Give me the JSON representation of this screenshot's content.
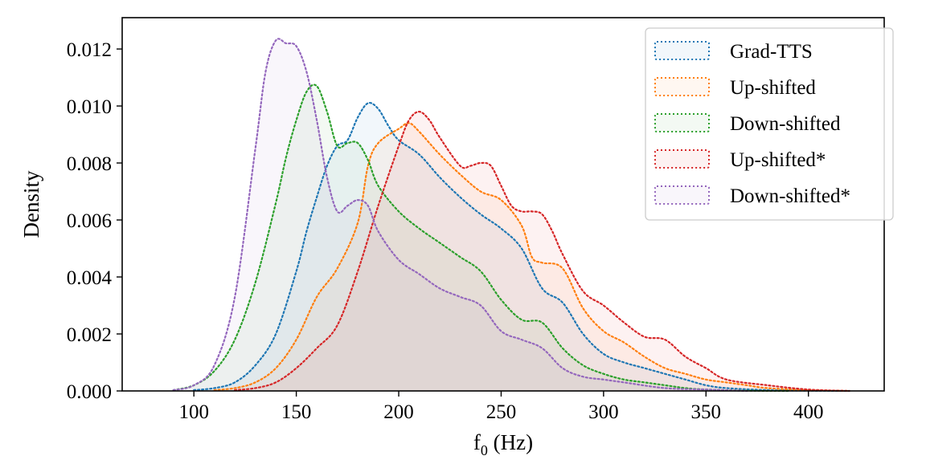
{
  "chart_data": {
    "type": "area",
    "xlabel_main": "f",
    "xlabel_sub": "0",
    "xlabel_rest": " (Hz)",
    "ylabel": "Density",
    "xlim": [
      65,
      437
    ],
    "ylim": [
      0,
      0.0131
    ],
    "x_ticks": [
      100,
      150,
      200,
      250,
      300,
      350,
      400
    ],
    "x_tick_labels": [
      "100",
      "150",
      "200",
      "250",
      "300",
      "350",
      "400"
    ],
    "y_ticks": [
      0,
      0.002,
      0.004,
      0.006,
      0.008,
      0.01,
      0.012
    ],
    "y_tick_labels": [
      "0.000",
      "0.002",
      "0.004",
      "0.006",
      "0.008",
      "0.010",
      "0.012"
    ],
    "grid": false,
    "legend_position": "top-right",
    "line_style": "dotted",
    "fill_alpha": 0.06,
    "series": [
      {
        "name": "Grad-TTS",
        "color": "#1f77b4",
        "x": [
          100,
          110,
          120,
          130,
          140,
          150,
          155,
          160,
          165,
          170,
          175,
          180,
          185,
          190,
          195,
          200,
          210,
          220,
          230,
          240,
          250,
          260,
          270,
          280,
          290,
          300,
          310,
          320,
          330,
          340,
          350,
          360,
          380,
          400,
          420
        ],
        "y": [
          3e-05,
          0.0001,
          0.0003,
          0.0009,
          0.002,
          0.0042,
          0.0056,
          0.0068,
          0.0079,
          0.0086,
          0.0088,
          0.0096,
          0.0101,
          0.0099,
          0.0093,
          0.0088,
          0.0083,
          0.0075,
          0.0068,
          0.0062,
          0.0057,
          0.005,
          0.0036,
          0.0031,
          0.002,
          0.0013,
          0.001,
          0.0008,
          0.0006,
          0.0004,
          0.0002,
          0.0001,
          3e-05,
          1e-05,
          0.0
        ]
      },
      {
        "name": "Up-shifted",
        "color": "#ff7f0e",
        "x": [
          110,
          120,
          130,
          140,
          150,
          160,
          170,
          180,
          185,
          190,
          200,
          205,
          210,
          220,
          230,
          240,
          250,
          260,
          265,
          270,
          280,
          290,
          300,
          310,
          320,
          330,
          340,
          350,
          360,
          370,
          380,
          400,
          420
        ],
        "y": [
          3e-05,
          0.0001,
          0.0003,
          0.0008,
          0.0018,
          0.0033,
          0.0043,
          0.0059,
          0.0079,
          0.0087,
          0.0092,
          0.0094,
          0.0091,
          0.0083,
          0.0076,
          0.007,
          0.0067,
          0.0058,
          0.0047,
          0.0045,
          0.0043,
          0.0029,
          0.0021,
          0.0017,
          0.0012,
          0.0008,
          0.0006,
          0.0004,
          0.0003,
          0.0002,
          0.0001,
          3e-05,
          0.0
        ]
      },
      {
        "name": "Down-shifted",
        "color": "#2ca02c",
        "x": [
          90,
          100,
          110,
          120,
          130,
          140,
          145,
          150,
          155,
          160,
          165,
          170,
          175,
          180,
          185,
          190,
          200,
          210,
          220,
          230,
          240,
          250,
          260,
          270,
          280,
          290,
          300,
          310,
          320,
          330,
          340,
          350,
          370,
          390
        ],
        "y": [
          3e-05,
          0.0002,
          0.0007,
          0.0018,
          0.0038,
          0.0066,
          0.0082,
          0.0095,
          0.0105,
          0.0107,
          0.0098,
          0.0086,
          0.0087,
          0.0087,
          0.0081,
          0.0072,
          0.0063,
          0.0057,
          0.0052,
          0.0047,
          0.0042,
          0.0032,
          0.0025,
          0.0024,
          0.0015,
          0.0009,
          0.0006,
          0.0004,
          0.0003,
          0.0002,
          0.0001,
          5e-05,
          1e-05,
          0.0
        ]
      },
      {
        "name": "Up-shifted*",
        "color": "#d62728",
        "x": [
          120,
          130,
          140,
          150,
          160,
          170,
          180,
          190,
          200,
          205,
          210,
          215,
          220,
          230,
          235,
          240,
          245,
          250,
          255,
          260,
          265,
          270,
          275,
          280,
          290,
          300,
          310,
          320,
          330,
          340,
          350,
          360,
          380,
          400,
          420
        ],
        "y": [
          3e-05,
          0.0001,
          0.0003,
          0.0008,
          0.0015,
          0.0023,
          0.0042,
          0.0065,
          0.0086,
          0.0095,
          0.0098,
          0.0095,
          0.0089,
          0.0079,
          0.0079,
          0.008,
          0.0079,
          0.0072,
          0.0065,
          0.0063,
          0.0063,
          0.0062,
          0.0056,
          0.0048,
          0.0035,
          0.003,
          0.0024,
          0.0019,
          0.0018,
          0.0012,
          0.0008,
          0.0004,
          0.0002,
          5e-05,
          0.0
        ]
      },
      {
        "name": "Down-shifted*",
        "color": "#9467bd",
        "x": [
          90,
          100,
          110,
          120,
          130,
          135,
          140,
          145,
          150,
          155,
          160,
          165,
          170,
          175,
          180,
          185,
          190,
          200,
          210,
          220,
          230,
          240,
          250,
          260,
          270,
          280,
          290,
          300,
          310,
          330,
          350,
          370
        ],
        "y": [
          3e-05,
          0.0002,
          0.0009,
          0.0033,
          0.0085,
          0.0112,
          0.0123,
          0.0122,
          0.0121,
          0.0112,
          0.0095,
          0.0075,
          0.0063,
          0.0065,
          0.0067,
          0.0065,
          0.0056,
          0.0046,
          0.0041,
          0.0036,
          0.0033,
          0.003,
          0.0021,
          0.0018,
          0.0015,
          0.0008,
          0.0005,
          0.0004,
          0.0003,
          0.0001,
          5e-05,
          0.0
        ]
      }
    ]
  }
}
